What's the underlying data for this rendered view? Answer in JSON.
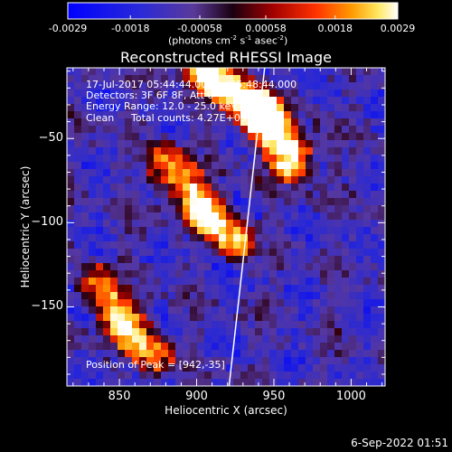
{
  "colorbar": {
    "tick_labels": [
      "-0.0029",
      "-0.0018",
      "-0.00058",
      "0.00058",
      "0.0018",
      "0.0029"
    ],
    "label_main": "(photons cm",
    "label_sup1": "-2",
    "label_mid1": " s",
    "label_sup2": "-1",
    "label_mid2": " asec",
    "label_sup3": "-2",
    "label_end": ")"
  },
  "chart_data": {
    "type": "heatmap",
    "title": "Reconstructed RHESSI Image",
    "xlabel": "Heliocentric X (arcsec)",
    "ylabel": "Heliocentric Y (arcsec)",
    "x_ticks": [
      "850",
      "900",
      "950",
      "1000"
    ],
    "y_ticks": [
      "-50",
      "-100",
      "-150"
    ],
    "xlim": [
      816,
      1022
    ],
    "ylim": [
      -197,
      -8
    ],
    "clim": [
      -0.0029,
      0.0029
    ],
    "colormap": "RHESSI red-temperature (blue negative, black-red-yellow-white positive)",
    "limb_line": [
      [
        944,
        -8
      ],
      [
        921,
        -197
      ]
    ],
    "sources": [
      {
        "x": 942,
        "y": -35,
        "peak": 0.0029
      },
      {
        "x": 905,
        "y": -95,
        "peak": 0.0024
      },
      {
        "x": 850,
        "y": -160,
        "peak": 0.0022
      }
    ],
    "annotations": {
      "time": "17-Jul-2017 05:44:44.000 to 05:48:44.000",
      "detectors": "Detectors: 3F 6F 8F, Att 0",
      "energy": "Energy Range: 12.0 - 25.0 keV",
      "method": "Clean",
      "counts": "Total counts: 4.27E+03",
      "peak": "Position of Peak = [942,-35]"
    }
  },
  "footer": {
    "date": "6-Sep-2022 01:51"
  }
}
